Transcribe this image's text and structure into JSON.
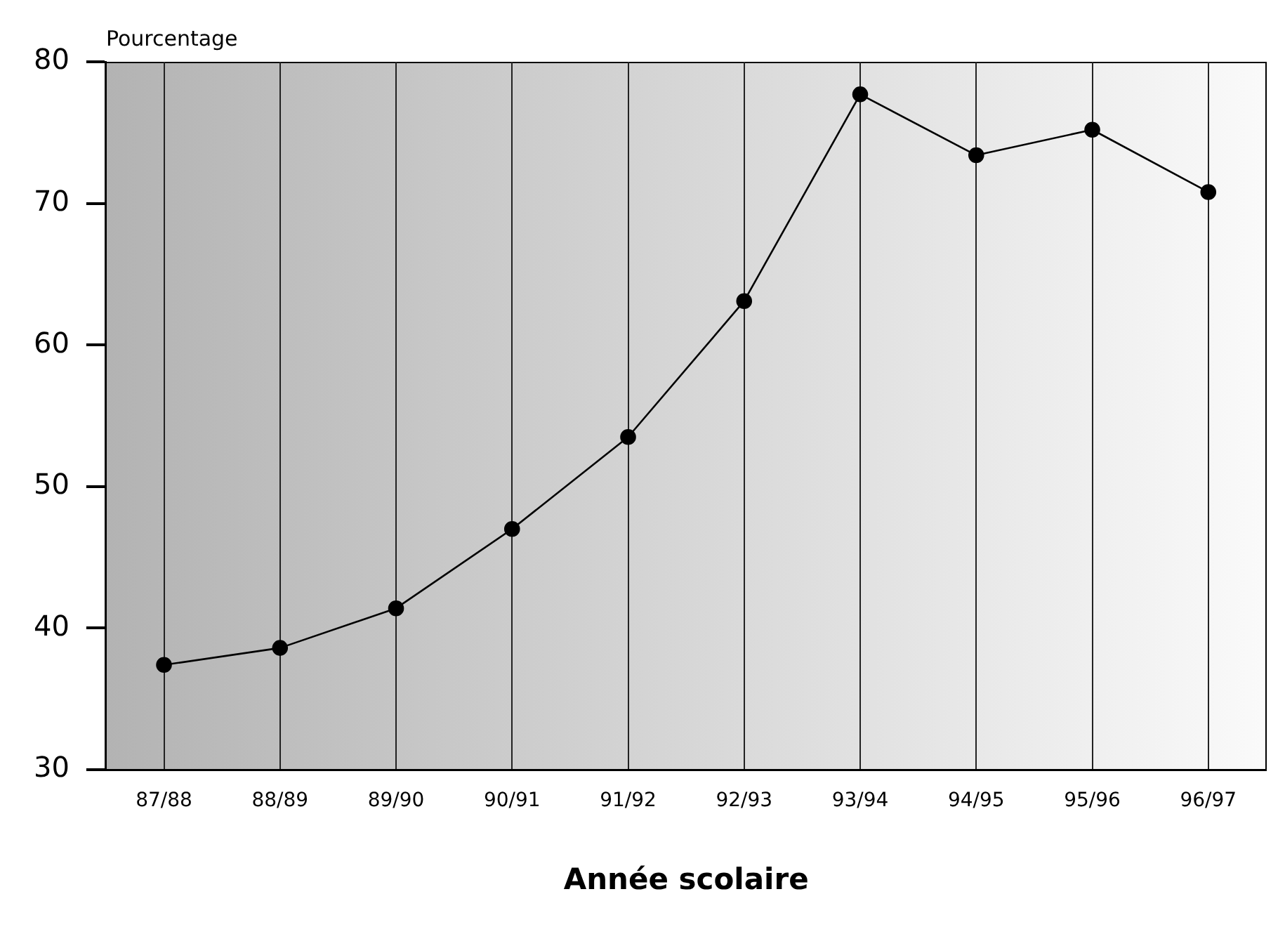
{
  "chart_data": {
    "type": "line",
    "ylabel": "Pourcentage",
    "xlabel": "Année scolaire",
    "categories": [
      "87/88",
      "88/89",
      "89/90",
      "90/91",
      "91/92",
      "92/93",
      "93/94",
      "94/95",
      "95/96",
      "96/97"
    ],
    "series": [
      {
        "color": "#000000",
        "values": [
          37.4,
          38.6,
          41.4,
          47.0,
          53.5,
          63.1,
          77.7,
          73.4,
          75.2,
          70.8
        ]
      }
    ],
    "ylim": [
      30,
      80
    ],
    "yticks": [
      30,
      40,
      50,
      60,
      70,
      80
    ],
    "grid": "x",
    "marker": "circle",
    "line_style": "solid",
    "legend": false
  }
}
